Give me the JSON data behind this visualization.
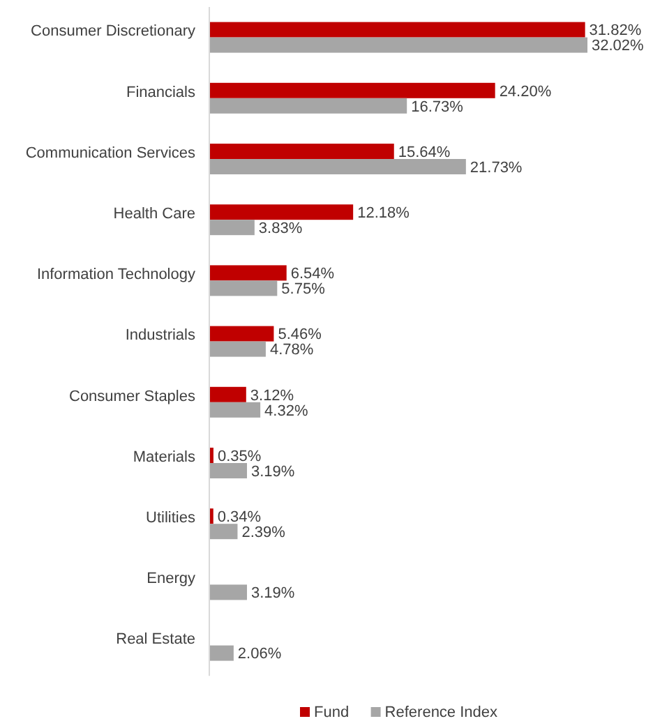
{
  "chart_data": {
    "type": "bar",
    "orientation": "horizontal",
    "categories": [
      "Consumer Discretionary",
      "Financials",
      "Communication Services",
      "Health Care",
      "Information Technology",
      "Industrials",
      "Consumer Staples",
      "Materials",
      "Utilities",
      "Energy",
      "Real Estate"
    ],
    "series": [
      {
        "name": "Fund",
        "color": "#c00000",
        "values": [
          31.82,
          24.2,
          15.64,
          12.18,
          6.54,
          5.46,
          3.12,
          0.35,
          0.34,
          null,
          null
        ],
        "value_labels": [
          "31.82%",
          "24.20%",
          "15.64%",
          "12.18%",
          "6.54%",
          "5.46%",
          "3.12%",
          "0.35%",
          "0.34%",
          null,
          null
        ]
      },
      {
        "name": "Reference Index",
        "color": "#a6a6a6",
        "values": [
          32.02,
          16.73,
          21.73,
          3.83,
          5.75,
          4.78,
          4.32,
          3.19,
          2.39,
          3.19,
          2.06
        ],
        "value_labels": [
          "32.02%",
          "16.73%",
          "21.73%",
          "3.83%",
          "5.75%",
          "4.78%",
          "4.32%",
          "3.19%",
          "2.39%",
          "3.19%",
          "2.06%"
        ]
      }
    ],
    "legend": "bottom"
  }
}
